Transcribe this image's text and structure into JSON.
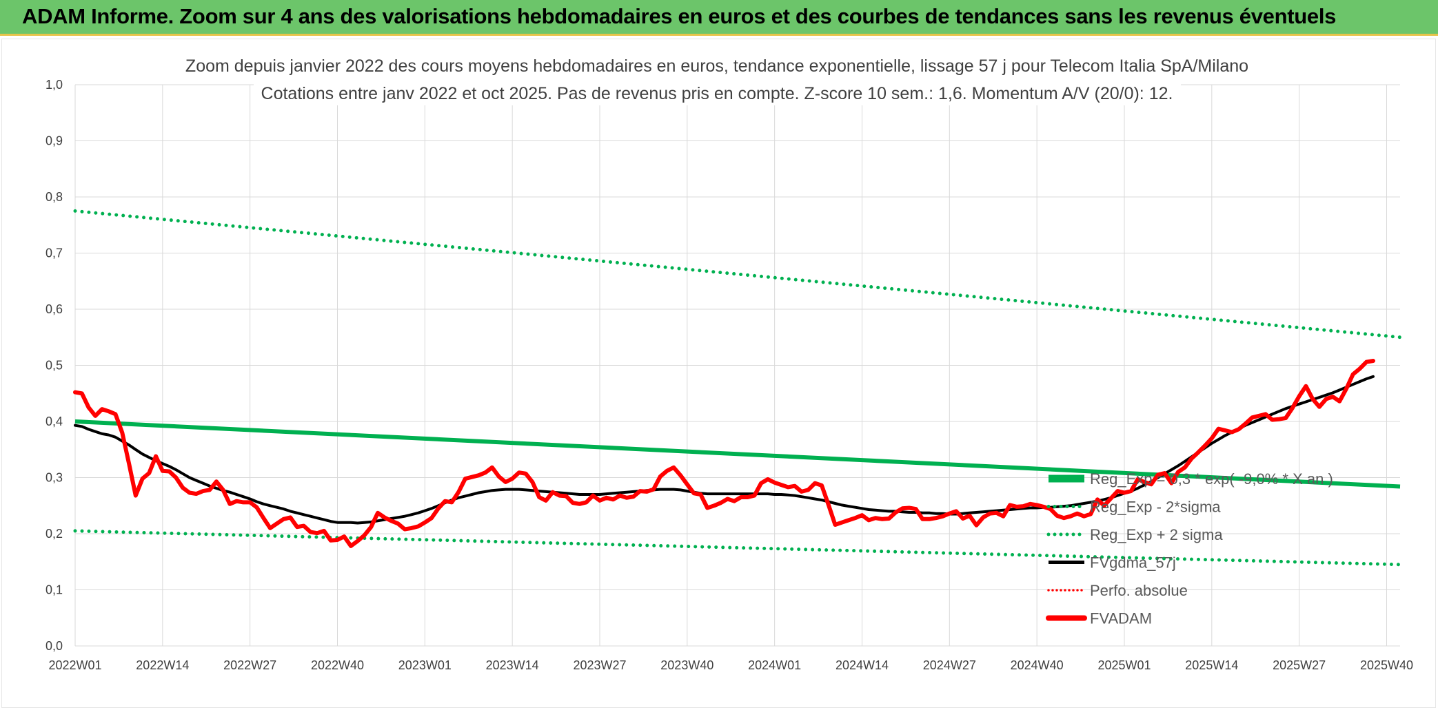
{
  "header": {
    "title": "ADAM Informe. Zoom sur 4 ans des valorisations hebdomadaires en euros et des courbes de tendances sans les revenus éventuels"
  },
  "chart_data": {
    "type": "line",
    "title_line1": "Zoom depuis janvier 2022 des cours moyens hebdomadaires en euros, tendance exponentielle, lissage 57 j pour Telecom Italia SpA/Milano",
    "title_line2": "Cotations entre janv 2022 et oct 2025. Pas de revenus pris en compte. Z-score 10 sem.: 1,6. Momentum A/V (20/0): 12.",
    "ylim": [
      0,
      1
    ],
    "yticks": [
      "0,0",
      "0,1",
      "0,2",
      "0,3",
      "0,4",
      "0,5",
      "0,6",
      "0,7",
      "0,8",
      "0,9",
      "1,0"
    ],
    "xticks": [
      "2022W01",
      "2022W14",
      "2022W27",
      "2022W40",
      "2023W01",
      "2023W14",
      "2023W27",
      "2023W40",
      "2024W01",
      "2024W14",
      "2024W27",
      "2024W40",
      "2025W01",
      "2025W14",
      "2025W27",
      "2025W40"
    ],
    "weeks_total": 198,
    "grid": true,
    "legend_position": "right",
    "colors": {
      "reg": "#00b050",
      "bands": "#00b050",
      "fvgdma": "#000000",
      "perfo": "#ff0000",
      "fvadam": "#ff0000",
      "grid": "#d9d9d9"
    },
    "series": [
      {
        "name": "Reg_Exp = 0,3 * exp( -9,0% *  X  an )",
        "style": "thick-green",
        "start": 0.4,
        "end": 0.284
      },
      {
        "name": "Reg_Exp - 2*sigma",
        "style": "dotted-green",
        "start": 0.205,
        "end": 0.145
      },
      {
        "name": "Reg_Exp + 2 sigma",
        "style": "dotted-green",
        "start": 0.775,
        "end": 0.55
      },
      {
        "name": "FVgdma_57j",
        "style": "black",
        "values": [
          0.393,
          0.391,
          0.386,
          0.382,
          0.378,
          0.376,
          0.372,
          0.365,
          0.358,
          0.35,
          0.342,
          0.336,
          0.33,
          0.325,
          0.32,
          0.314,
          0.307,
          0.3,
          0.295,
          0.29,
          0.285,
          0.281,
          0.277,
          0.274,
          0.27,
          0.266,
          0.262,
          0.257,
          0.253,
          0.25,
          0.247,
          0.244,
          0.24,
          0.237,
          0.234,
          0.231,
          0.228,
          0.225,
          0.222,
          0.22,
          0.22,
          0.22,
          0.219,
          0.22,
          0.221,
          0.223,
          0.225,
          0.227,
          0.229,
          0.231,
          0.234,
          0.237,
          0.241,
          0.245,
          0.25,
          0.255,
          0.26,
          0.264,
          0.267,
          0.27,
          0.273,
          0.275,
          0.277,
          0.278,
          0.279,
          0.279,
          0.279,
          0.278,
          0.277,
          0.276,
          0.275,
          0.274,
          0.273,
          0.272,
          0.271,
          0.27,
          0.27,
          0.27,
          0.27,
          0.271,
          0.272,
          0.273,
          0.274,
          0.275,
          0.276,
          0.277,
          0.278,
          0.279,
          0.279,
          0.279,
          0.278,
          0.276,
          0.274,
          0.272,
          0.271,
          0.271,
          0.271,
          0.271,
          0.271,
          0.271,
          0.271,
          0.271,
          0.271,
          0.271,
          0.27,
          0.27,
          0.269,
          0.268,
          0.266,
          0.264,
          0.262,
          0.26,
          0.257,
          0.254,
          0.251,
          0.249,
          0.247,
          0.245,
          0.243,
          0.242,
          0.241,
          0.24,
          0.24,
          0.239,
          0.238,
          0.238,
          0.237,
          0.237,
          0.236,
          0.236,
          0.235,
          0.235,
          0.236,
          0.237,
          0.238,
          0.239,
          0.24,
          0.241,
          0.242,
          0.243,
          0.244,
          0.245,
          0.246,
          0.246,
          0.247,
          0.247,
          0.248,
          0.249,
          0.25,
          0.252,
          0.254,
          0.256,
          0.258,
          0.261,
          0.264,
          0.268,
          0.272,
          0.276,
          0.281,
          0.287,
          0.293,
          0.3,
          0.307,
          0.314,
          0.321,
          0.329,
          0.337,
          0.345,
          0.353,
          0.361,
          0.368,
          0.375,
          0.381,
          0.387,
          0.393,
          0.398,
          0.403,
          0.408,
          0.413,
          0.418,
          0.423,
          0.427,
          0.431,
          0.435,
          0.439,
          0.443,
          0.447,
          0.451,
          0.456,
          0.461,
          0.466,
          0.471,
          0.476,
          0.48
        ]
      },
      {
        "name": "Perfo. absolue",
        "style": "red-dotted",
        "values": []
      },
      {
        "name": "FVADAM",
        "style": "thick-red",
        "values": [
          0.452,
          0.45,
          0.425,
          0.41,
          0.422,
          0.418,
          0.413,
          0.38,
          0.325,
          0.268,
          0.298,
          0.308,
          0.338,
          0.312,
          0.311,
          0.3,
          0.282,
          0.273,
          0.271,
          0.276,
          0.278,
          0.293,
          0.278,
          0.253,
          0.258,
          0.256,
          0.256,
          0.247,
          0.228,
          0.21,
          0.218,
          0.226,
          0.229,
          0.212,
          0.214,
          0.203,
          0.201,
          0.205,
          0.188,
          0.189,
          0.195,
          0.178,
          0.187,
          0.197,
          0.212,
          0.237,
          0.229,
          0.223,
          0.218,
          0.208,
          0.21,
          0.213,
          0.22,
          0.228,
          0.245,
          0.258,
          0.256,
          0.274,
          0.298,
          0.301,
          0.304,
          0.309,
          0.318,
          0.302,
          0.292,
          0.298,
          0.309,
          0.307,
          0.292,
          0.265,
          0.259,
          0.274,
          0.268,
          0.267,
          0.255,
          0.253,
          0.256,
          0.268,
          0.259,
          0.264,
          0.261,
          0.268,
          0.264,
          0.266,
          0.276,
          0.275,
          0.279,
          0.302,
          0.312,
          0.318,
          0.304,
          0.288,
          0.272,
          0.27,
          0.246,
          0.25,
          0.255,
          0.262,
          0.258,
          0.265,
          0.265,
          0.268,
          0.29,
          0.297,
          0.291,
          0.287,
          0.283,
          0.285,
          0.275,
          0.278,
          0.29,
          0.286,
          0.252,
          0.216,
          0.22,
          0.224,
          0.228,
          0.233,
          0.224,
          0.228,
          0.226,
          0.227,
          0.238,
          0.245,
          0.246,
          0.244,
          0.226,
          0.226,
          0.228,
          0.231,
          0.236,
          0.24,
          0.227,
          0.232,
          0.215,
          0.229,
          0.236,
          0.237,
          0.231,
          0.251,
          0.248,
          0.249,
          0.253,
          0.251,
          0.248,
          0.244,
          0.232,
          0.228,
          0.231,
          0.236,
          0.231,
          0.235,
          0.261,
          0.25,
          0.263,
          0.276,
          0.273,
          0.276,
          0.297,
          0.292,
          0.288,
          0.305,
          0.308,
          0.29,
          0.31,
          0.318,
          0.334,
          0.345,
          0.357,
          0.37,
          0.387,
          0.384,
          0.381,
          0.386,
          0.396,
          0.407,
          0.41,
          0.413,
          0.403,
          0.404,
          0.406,
          0.424,
          0.445,
          0.463,
          0.44,
          0.426,
          0.44,
          0.444,
          0.436,
          0.458,
          0.484,
          0.494,
          0.506,
          0.508
        ]
      }
    ]
  }
}
